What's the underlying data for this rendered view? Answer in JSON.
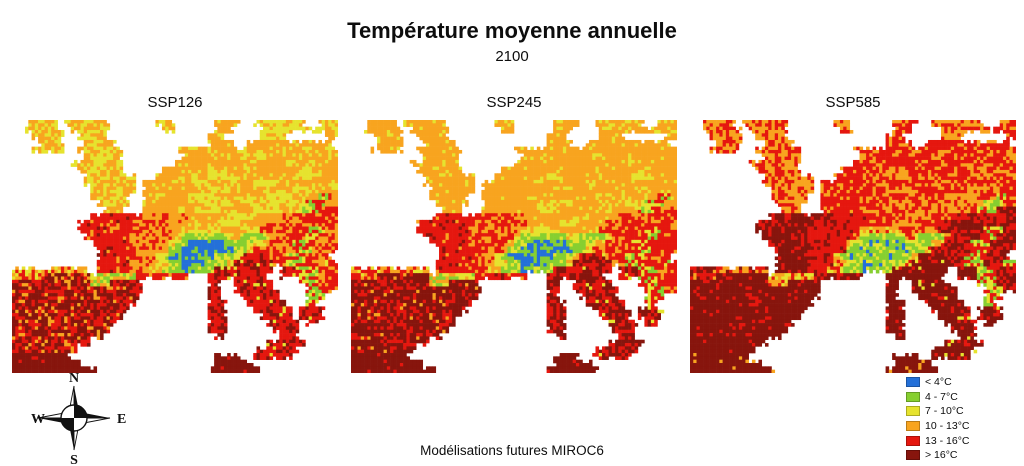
{
  "header": {
    "title": "Température moyenne annuelle",
    "subtitle": "2100"
  },
  "maps": {
    "scenarios": [
      {
        "id": "ssp126",
        "label": "SSP126"
      },
      {
        "id": "ssp245",
        "label": "SSP245"
      },
      {
        "id": "ssp585",
        "label": "SSP585"
      }
    ],
    "palette": [
      "#ffffff",
      "#2470d8",
      "#86cf30",
      "#e6e32e",
      "#f8a41f",
      "#e5170f",
      "#87150d"
    ],
    "basemap_rows": [
      "..UUUUU.UUUUUUU.......YYY......OOOO..YYYYYYYY..YYY",
      "..UUUUUU.UUUUUU........YY......OOO....YYYYYYYYYYYY",
      "...UUUUU..UUUUU...............OOO.....YYYY......OO",
      "....UUUU...UUUUU..............OOOO..OOOOOOOOOOOOO.",
      "...UUUUU..UUUUUUU........OOOOOOOOOOOOOOOOOOOOOOOOO",
      "...........UUUUUU.........OOOOOOOOOOOyyOOOOOOOOOOO",
      ".........UUUUUUUU........OOOOOOOOOOOOOOOOOyyOOOOOO",
      "..........UUUUUUU......OOOOOOOyyyOOOOOOOOOOOyyOOOO",
      "...........UUUUUUUU...OOOOOOOOyyyyOOOOOOOOOyyyOOOO",
      "...........UUUUUUUU.OOOOOOOOyyOOOOOOOyyyyOOOOOOOOO",
      "............UUUUUUU.OOOOOOOOOOyyyyOOOOOOOOOyyyOOOO",
      "............UUUUUU..OOOOOOOyyyyOOOOOOOOyyyyOOOOEEO",
      ".............UUUUU..OOOOOOOOOyyyyyOOOOyyyyyyyEEEOO",
      "..............UUU...OOOOOOOOyyyyOOOOOyyyyOOOEEEGGG",
      "............FFFFFFFFfffffffOOOOOOOyyyOOOOGGGGGGGGG",
      "..........FFFFFFFFFffffffffOOOOOyyyOOOOGGGGGGGGGGG",
      "..........FFFFFFFFffffffffhhhhhhOOOOyyGGGGGGGEEEGG",
      "...........FFFFFFFfffffffhaaaaaaahhaaaahGGGGGEEGGG",
      "............FFFFFFffffffhaaAAAAAAaaaahhGGGGEEEGGGG",
      ".............FFFFFFfffffaaAAAAAAAAaahGGGGGGGEEGGGG",
      ".............FFFFFFfffhaAAAAAAAaaahTTTTGGGEEEGGGG.",
      ".............FFFFFffffhhaaAAAAaaahTTTTTTGGEEEGGGEE",
      "ssssssssssss.FFFFFfffhhaaaAAaaaTTTTTTTTT.TTTEEEGGG",
      "ssssSSSSSSSSPPPPPPPFFFFFFFF...TTTTTTTTT..TTTEEEGGG",
      "SSSSSSSSSSSSPPPSSSSS..........CC..TTTTTT....EEEGGG",
      "SSSSSSSSSSSSSSSSSSSS..........CC..TTTTTTT....EEEGG",
      "SSSSSSSSSSSSSSSSSSSS..........CC...TTTTTT....EEE..",
      "SSSSSSSSSSSSSSSSSSS...........CCC...TTTTTT...EE...",
      "SSSSSSSSSSSSSSSSSS............CCC....TTTTTT.TTTT..",
      "SSSSSSSSSSSSSSSSS.............CCC.....TTTTT.TTTT..",
      "SSSSSSSSSSSSSSSS..............CCC......TTTTT.TT...",
      "SSSSSSSSSSSSSSS...............CCC.......TTTT......",
      "SSSSSSSSSSSSSS.................CC........TTT......",
      "SSSSSSSSSSSS...........................TTTTTT.....",
      "SSSSSSSSSS...........................TTTTTTT......",
      "XXXXXXXXX......................XXXX..TTTTTT.......",
      "XXXXXXXXXXX....................XXXXXX.............",
      "XXXXXXXXXXXXX.................XXXXXXXX............"
    ],
    "zone_colors": {
      "Y": [
        [
          [
            3,
            0.7
          ],
          [
            4,
            0.3
          ]
        ],
        [
          [
            4,
            0.75
          ],
          [
            3,
            0.25
          ]
        ],
        [
          [
            4,
            0.6
          ],
          [
            5,
            0.4
          ]
        ]
      ],
      "O": [
        [
          [
            4,
            0.82
          ],
          [
            3,
            0.18
          ]
        ],
        [
          [
            4,
            0.93
          ],
          [
            3,
            0.07
          ]
        ],
        [
          [
            5,
            0.72
          ],
          [
            4,
            0.28
          ]
        ]
      ],
      "y": [
        [
          [
            3,
            0.85
          ],
          [
            4,
            0.15
          ]
        ],
        [
          [
            3,
            0.5
          ],
          [
            4,
            0.5
          ]
        ],
        [
          [
            4,
            0.75
          ],
          [
            5,
            0.25
          ]
        ]
      ],
      "U": [
        [
          [
            3,
            0.5
          ],
          [
            4,
            0.5
          ]
        ],
        [
          [
            4,
            0.92
          ],
          [
            3,
            0.08
          ]
        ],
        [
          [
            4,
            0.58
          ],
          [
            5,
            0.42
          ]
        ]
      ],
      "F": [
        [
          [
            5,
            0.8
          ],
          [
            4,
            0.13
          ],
          [
            6,
            0.07
          ]
        ],
        [
          [
            5,
            0.86
          ],
          [
            6,
            0.1
          ],
          [
            4,
            0.04
          ]
        ],
        [
          [
            6,
            0.76
          ],
          [
            5,
            0.24
          ]
        ]
      ],
      "f": [
        [
          [
            4,
            0.7
          ],
          [
            5,
            0.3
          ]
        ],
        [
          [
            5,
            0.58
          ],
          [
            4,
            0.42
          ]
        ],
        [
          [
            5,
            0.78
          ],
          [
            6,
            0.22
          ]
        ]
      ],
      "h": [
        [
          [
            3,
            0.7
          ],
          [
            4,
            0.3
          ]
        ],
        [
          [
            3,
            0.6
          ],
          [
            4,
            0.4
          ]
        ],
        [
          [
            4,
            0.5
          ],
          [
            3,
            0.3
          ],
          [
            5,
            0.2
          ]
        ]
      ],
      "a": [
        [
          [
            2,
            0.7
          ],
          [
            3,
            0.3
          ]
        ],
        [
          [
            2,
            0.7
          ],
          [
            3,
            0.3
          ]
        ],
        [
          [
            2,
            0.6
          ],
          [
            3,
            0.4
          ]
        ]
      ],
      "A": [
        [
          [
            1,
            0.7
          ],
          [
            2,
            0.3
          ]
        ],
        [
          [
            1,
            0.68
          ],
          [
            2,
            0.32
          ]
        ],
        [
          [
            2,
            0.55
          ],
          [
            1,
            0.25
          ],
          [
            3,
            0.2
          ]
        ]
      ],
      "P": [
        [
          [
            2,
            0.35
          ],
          [
            3,
            0.4
          ],
          [
            4,
            0.25
          ]
        ],
        [
          [
            2,
            0.3
          ],
          [
            3,
            0.4
          ],
          [
            4,
            0.3
          ]
        ],
        [
          [
            3,
            0.4
          ],
          [
            4,
            0.38
          ],
          [
            5,
            0.22
          ]
        ]
      ],
      "S": [
        [
          [
            6,
            0.5
          ],
          [
            5,
            0.38
          ],
          [
            4,
            0.12
          ]
        ],
        [
          [
            6,
            0.68
          ],
          [
            5,
            0.28
          ],
          [
            4,
            0.04
          ]
        ],
        [
          [
            6,
            0.9
          ],
          [
            5,
            0.1
          ]
        ]
      ],
      "s": [
        [
          [
            4,
            0.4
          ],
          [
            3,
            0.3
          ],
          [
            5,
            0.3
          ]
        ],
        [
          [
            4,
            0.4
          ],
          [
            5,
            0.4
          ],
          [
            3,
            0.2
          ]
        ],
        [
          [
            5,
            0.45
          ],
          [
            6,
            0.3
          ],
          [
            4,
            0.25
          ]
        ]
      ],
      "T": [
        [
          [
            5,
            0.62
          ],
          [
            6,
            0.32
          ],
          [
            3,
            0.06
          ]
        ],
        [
          [
            5,
            0.48
          ],
          [
            6,
            0.46
          ],
          [
            3,
            0.06
          ]
        ],
        [
          [
            6,
            0.84
          ],
          [
            5,
            0.12
          ],
          [
            3,
            0.04
          ]
        ]
      ],
      "C": [
        [
          [
            5,
            0.55
          ],
          [
            6,
            0.45
          ]
        ],
        [
          [
            6,
            0.6
          ],
          [
            5,
            0.4
          ]
        ],
        [
          [
            6,
            0.9
          ],
          [
            5,
            0.1
          ]
        ]
      ],
      "X": [
        [
          [
            6,
            0.94
          ],
          [
            5,
            0.06
          ]
        ],
        [
          [
            6,
            0.95
          ],
          [
            5,
            0.05
          ]
        ],
        [
          [
            6,
            0.95
          ],
          [
            4,
            0.05
          ]
        ]
      ],
      "E": [
        [
          [
            5,
            0.4
          ],
          [
            3,
            0.32
          ],
          [
            2,
            0.28
          ]
        ],
        [
          [
            5,
            0.45
          ],
          [
            3,
            0.3
          ],
          [
            2,
            0.25
          ]
        ],
        [
          [
            5,
            0.42
          ],
          [
            3,
            0.3
          ],
          [
            2,
            0.28
          ]
        ]
      ],
      "G": [
        [
          [
            5,
            0.6
          ],
          [
            4,
            0.4
          ]
        ],
        [
          [
            5,
            0.72
          ],
          [
            4,
            0.28
          ]
        ],
        [
          [
            5,
            0.52
          ],
          [
            6,
            0.48
          ]
        ]
      ]
    }
  },
  "legend": {
    "items": [
      {
        "label": "< 4°C",
        "color": "#2470d8"
      },
      {
        "label": "4 - 7°C",
        "color": "#86cf30"
      },
      {
        "label": "7 - 10°C",
        "color": "#e6e32e"
      },
      {
        "label": "10 - 13°C",
        "color": "#f8a41f"
      },
      {
        "label": "13 - 16°C",
        "color": "#e5170f"
      },
      {
        "label": "> 16°C",
        "color": "#87150d"
      }
    ]
  },
  "compass": {
    "n": "N",
    "e": "E",
    "s": "S",
    "w": "W"
  },
  "footer": {
    "caption": "Modélisations futures MIROC6"
  }
}
